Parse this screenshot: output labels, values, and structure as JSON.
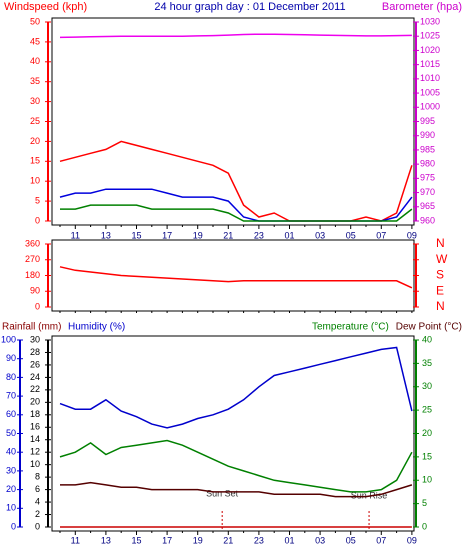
{
  "chart_data": [
    {
      "type": "line",
      "title": "24 hour graph day : 01 December 2011",
      "y_label": "Windspeed (kph)",
      "y2_label": "Barometer (hpa)",
      "categories": [
        null,
        "11",
        null,
        "13",
        null,
        "15",
        null,
        "17",
        null,
        "19",
        null,
        "21",
        null,
        "23",
        null,
        "01",
        null,
        "03",
        null,
        "05",
        null,
        "07",
        null,
        "09"
      ],
      "ylim": [
        0,
        50
      ],
      "yticks": [
        0,
        5,
        10,
        15,
        20,
        25,
        30,
        35,
        40,
        45,
        50
      ],
      "y2lim": [
        960,
        1030
      ],
      "y2ticks": [
        960,
        965,
        970,
        975,
        980,
        985,
        990,
        995,
        1000,
        1005,
        1010,
        1015,
        1020,
        1025,
        1030
      ],
      "series": [
        {
          "color": "#ff0000",
          "values": [
            15,
            16,
            17,
            18,
            20,
            19,
            18,
            17,
            16,
            15,
            14,
            12,
            4,
            1,
            2,
            0,
            0,
            0,
            0,
            0,
            1,
            0,
            2,
            14
          ]
        },
        {
          "color": "#0000dd",
          "values": [
            6,
            7,
            7,
            8,
            8,
            8,
            8,
            7,
            6,
            6,
            6,
            5,
            1,
            0,
            0,
            0,
            0,
            0,
            0,
            0,
            0,
            0,
            1,
            6
          ]
        },
        {
          "color": "#008000",
          "values": [
            3,
            3,
            4,
            4,
            4,
            4,
            3,
            3,
            3,
            3,
            3,
            2,
            0,
            0,
            0,
            0,
            0,
            0,
            0,
            0,
            0,
            0,
            0,
            3
          ]
        },
        {
          "color": "#ee00ee",
          "axis": "y2",
          "values": [
            1024.6,
            1024.7,
            1024.8,
            1024.9,
            1025,
            1025,
            1025,
            1025,
            1025,
            1025.1,
            1025.2,
            1025.4,
            1025.6,
            1025.7,
            1025.7,
            1025.6,
            1025.5,
            1025.4,
            1025.3,
            1025.2,
            1025.1,
            1025.1,
            1025.2,
            1025.3
          ]
        }
      ]
    },
    {
      "type": "line",
      "categories": [
        null,
        null,
        null,
        null,
        null,
        null,
        null,
        null,
        null,
        null,
        null,
        null,
        null,
        null,
        null,
        null,
        null,
        null,
        null,
        null,
        null,
        null,
        null,
        null
      ],
      "ylim": [
        0,
        360
      ],
      "yticks": [
        0,
        90,
        180,
        270,
        360
      ],
      "y2lim": [
        0,
        360
      ],
      "y2ticks": [
        {
          "value": 0,
          "label": "N"
        },
        {
          "value": 90,
          "label": "E"
        },
        {
          "value": 180,
          "label": "S"
        },
        {
          "value": 270,
          "label": "W"
        },
        {
          "value": 360,
          "label": "N"
        }
      ],
      "series": [
        {
          "color": "#ff0000",
          "values": [
            230,
            210,
            200,
            190,
            180,
            175,
            170,
            165,
            160,
            155,
            150,
            145,
            150,
            150,
            150,
            150,
            150,
            150,
            150,
            150,
            150,
            150,
            150,
            110
          ]
        }
      ]
    },
    {
      "type": "line",
      "y_label": "Humidity (%)",
      "y3_label": "Rainfall (mm)",
      "y2_label": "Temperature (°C)",
      "y2b_label": "Dew Point (°C)",
      "annotations": [
        "Sun Set",
        "Sun Rise"
      ],
      "categories": [
        null,
        "11",
        null,
        "13",
        null,
        "15",
        null,
        "17",
        null,
        "19",
        null,
        "21",
        null,
        "23",
        null,
        "01",
        null,
        "03",
        null,
        "05",
        null,
        "07",
        null,
        "09"
      ],
      "ylim": [
        0,
        100
      ],
      "yticks": [
        0,
        10,
        20,
        30,
        40,
        50,
        60,
        70,
        80,
        90,
        100
      ],
      "y3lim": [
        0,
        30
      ],
      "y3ticks": [
        0,
        2,
        4,
        6,
        8,
        10,
        12,
        14,
        16,
        18,
        20,
        22,
        24,
        26,
        28,
        30
      ],
      "y2lim": [
        0,
        40
      ],
      "y2ticks": [
        0,
        5,
        10,
        15,
        20,
        25,
        30,
        35,
        40
      ],
      "series": [
        {
          "color": "#0000cc",
          "values": [
            66,
            63,
            63,
            68,
            62,
            59,
            55,
            53,
            55,
            58,
            60,
            63,
            68,
            75,
            81,
            83,
            85,
            87,
            89,
            91,
            93,
            95,
            96,
            62
          ]
        },
        {
          "color": "#008000",
          "axis": "y2",
          "values": [
            15,
            16,
            18,
            15.5,
            17,
            17.5,
            18,
            18.5,
            17.5,
            16,
            14.5,
            13,
            12,
            11,
            10,
            9.5,
            9,
            8.5,
            8,
            7.5,
            7.5,
            8,
            10,
            16
          ]
        },
        {
          "color": "#550000",
          "axis": "y2",
          "values": [
            9,
            9,
            9.5,
            9,
            8.5,
            8.5,
            8,
            8,
            8,
            8,
            7.5,
            7.5,
            7.5,
            7.5,
            7,
            7,
            7,
            7,
            6.5,
            6.5,
            6.5,
            7,
            8,
            9
          ]
        },
        {
          "color": "#cc0000",
          "axis": "y3",
          "values": [
            0,
            0,
            0,
            0,
            0,
            0,
            0,
            0,
            0,
            0,
            0,
            0,
            0,
            0,
            0,
            0,
            0,
            0,
            0,
            0,
            0,
            0,
            0,
            0
          ]
        }
      ]
    }
  ]
}
